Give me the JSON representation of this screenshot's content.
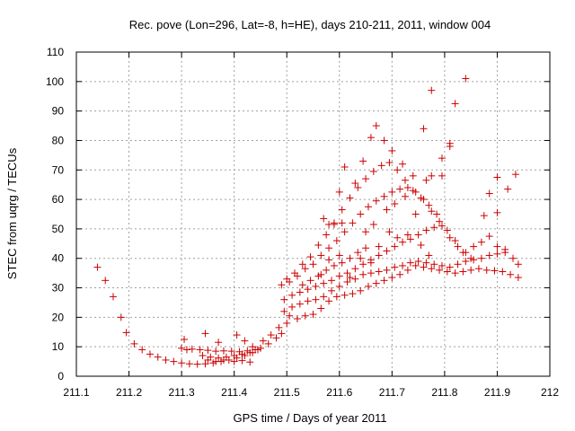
{
  "chart_data": {
    "type": "scatter",
    "title": "Rec. pove (Lon=296, Lat=-8, h=HE), days 210-211, 2011, window 004",
    "xlabel": "GPS time / Days of year 2011",
    "ylabel": "STEC from uqrg / TECUs",
    "xlim": [
      211.1,
      212
    ],
    "ylim": [
      0,
      110
    ],
    "xticks": [
      "211.1",
      "211.2",
      "211.3",
      "211.4",
      "211.5",
      "211.6",
      "211.7",
      "211.8",
      "211.9",
      "212"
    ],
    "yticks": [
      "0",
      "10",
      "20",
      "30",
      "40",
      "50",
      "60",
      "70",
      "80",
      "90",
      "100",
      "110"
    ],
    "grid": true,
    "marker": "plus",
    "color": "#cc0000",
    "points": [
      [
        211.14,
        37
      ],
      [
        211.155,
        32.5
      ],
      [
        211.17,
        27
      ],
      [
        211.185,
        20
      ],
      [
        211.195,
        14.8
      ],
      [
        211.21,
        11
      ],
      [
        211.225,
        9
      ],
      [
        211.24,
        7.5
      ],
      [
        211.255,
        6.5
      ],
      [
        211.27,
        5.5
      ],
      [
        211.285,
        5
      ],
      [
        211.3,
        4.5
      ],
      [
        211.315,
        4.2
      ],
      [
        211.33,
        4.1
      ],
      [
        211.345,
        4.2
      ],
      [
        211.36,
        4.5
      ],
      [
        211.375,
        5
      ],
      [
        211.39,
        5.5
      ],
      [
        211.405,
        6.2
      ],
      [
        211.42,
        7
      ],
      [
        211.435,
        8
      ],
      [
        211.45,
        9.5
      ],
      [
        211.465,
        11
      ],
      [
        211.48,
        13
      ],
      [
        211.49,
        14.5
      ],
      [
        211.3,
        9.5
      ],
      [
        211.31,
        9
      ],
      [
        211.32,
        9.2
      ],
      [
        211.335,
        9
      ],
      [
        211.35,
        8.8
      ],
      [
        211.365,
        8.5
      ],
      [
        211.38,
        8.6
      ],
      [
        211.395,
        8.5
      ],
      [
        211.41,
        8.3
      ],
      [
        211.425,
        8.6
      ],
      [
        211.44,
        9
      ],
      [
        211.305,
        12.5
      ],
      [
        211.345,
        14.5
      ],
      [
        211.37,
        11.5
      ],
      [
        211.405,
        14
      ],
      [
        211.42,
        12
      ],
      [
        211.435,
        10
      ],
      [
        211.34,
        7
      ],
      [
        211.355,
        6.5
      ],
      [
        211.37,
        6.2
      ],
      [
        211.385,
        6.5
      ],
      [
        211.4,
        7
      ],
      [
        211.415,
        7.5
      ],
      [
        211.43,
        8
      ],
      [
        211.445,
        9
      ],
      [
        211.35,
        5.5
      ],
      [
        211.365,
        5
      ],
      [
        211.38,
        5.5
      ],
      [
        211.4,
        5
      ],
      [
        211.415,
        5.3
      ],
      [
        211.43,
        4.8
      ],
      [
        211.455,
        12
      ],
      [
        211.47,
        14
      ],
      [
        211.485,
        16.5
      ],
      [
        211.5,
        18
      ],
      [
        211.505,
        20.5
      ],
      [
        211.52,
        19.5
      ],
      [
        211.535,
        20.5
      ],
      [
        211.55,
        21
      ],
      [
        211.565,
        23
      ],
      [
        211.58,
        25.5
      ],
      [
        211.595,
        27
      ],
      [
        211.61,
        27.5
      ],
      [
        211.625,
        28
      ],
      [
        211.64,
        29
      ],
      [
        211.655,
        30.5
      ],
      [
        211.67,
        31.5
      ],
      [
        211.685,
        32.5
      ],
      [
        211.7,
        33.5
      ],
      [
        211.715,
        34.5
      ],
      [
        211.73,
        36
      ],
      [
        211.745,
        37.5
      ],
      [
        211.76,
        37
      ],
      [
        211.775,
        36.5
      ],
      [
        211.79,
        36
      ],
      [
        211.805,
        35.5
      ],
      [
        211.82,
        35
      ],
      [
        211.835,
        35.5
      ],
      [
        211.85,
        36
      ],
      [
        211.865,
        36.5
      ],
      [
        211.88,
        36
      ],
      [
        211.895,
        35.8
      ],
      [
        211.91,
        35.5
      ],
      [
        211.925,
        34.5
      ],
      [
        211.94,
        33.5
      ],
      [
        211.495,
        22
      ],
      [
        211.51,
        23.5
      ],
      [
        211.525,
        24.5
      ],
      [
        211.54,
        25.5
      ],
      [
        211.555,
        26
      ],
      [
        211.57,
        27
      ],
      [
        211.585,
        29
      ],
      [
        211.6,
        30.5
      ],
      [
        211.615,
        32
      ],
      [
        211.63,
        33
      ],
      [
        211.645,
        34.5
      ],
      [
        211.66,
        35
      ],
      [
        211.675,
        35.5
      ],
      [
        211.69,
        36
      ],
      [
        211.705,
        37
      ],
      [
        211.72,
        37.5
      ],
      [
        211.735,
        38.5
      ],
      [
        211.75,
        39
      ],
      [
        211.765,
        38.5
      ],
      [
        211.78,
        38
      ],
      [
        211.795,
        37.5
      ],
      [
        211.81,
        37
      ],
      [
        211.825,
        38
      ],
      [
        211.84,
        39
      ],
      [
        211.855,
        39.5
      ],
      [
        211.87,
        40
      ],
      [
        211.885,
        41
      ],
      [
        211.9,
        41.5
      ],
      [
        211.915,
        42
      ],
      [
        211.93,
        40
      ],
      [
        211.94,
        38
      ],
      [
        211.495,
        26
      ],
      [
        211.51,
        27.5
      ],
      [
        211.525,
        28.5
      ],
      [
        211.54,
        29.5
      ],
      [
        211.555,
        30.5
      ],
      [
        211.57,
        31.5
      ],
      [
        211.585,
        32.5
      ],
      [
        211.6,
        34
      ],
      [
        211.615,
        35
      ],
      [
        211.63,
        36.5
      ],
      [
        211.645,
        38
      ],
      [
        211.66,
        39.5
      ],
      [
        211.675,
        41
      ],
      [
        211.69,
        42.5
      ],
      [
        211.705,
        44
      ],
      [
        211.72,
        45.5
      ],
      [
        211.735,
        46.5
      ],
      [
        211.75,
        48
      ],
      [
        211.765,
        49.5
      ],
      [
        211.78,
        50.5
      ],
      [
        211.795,
        51
      ],
      [
        211.81,
        47
      ],
      [
        211.825,
        44
      ],
      [
        211.84,
        42
      ],
      [
        211.855,
        44
      ],
      [
        211.87,
        45.5
      ],
      [
        211.885,
        47.5
      ],
      [
        211.9,
        44
      ],
      [
        211.915,
        43
      ],
      [
        211.49,
        31
      ],
      [
        211.505,
        32
      ],
      [
        211.52,
        34
      ],
      [
        211.535,
        36.5
      ],
      [
        211.55,
        38
      ],
      [
        211.565,
        41
      ],
      [
        211.58,
        43.5
      ],
      [
        211.595,
        46
      ],
      [
        211.61,
        49
      ],
      [
        211.625,
        52
      ],
      [
        211.64,
        55
      ],
      [
        211.655,
        57.5
      ],
      [
        211.67,
        59.5
      ],
      [
        211.685,
        61
      ],
      [
        211.7,
        62.5
      ],
      [
        211.715,
        63.5
      ],
      [
        211.73,
        64
      ],
      [
        211.745,
        62.5
      ],
      [
        211.76,
        60
      ],
      [
        211.775,
        56
      ],
      [
        211.79,
        52.5
      ],
      [
        211.805,
        49.5
      ],
      [
        211.82,
        46
      ],
      [
        211.835,
        42
      ],
      [
        211.85,
        40
      ],
      [
        211.5,
        33
      ],
      [
        211.515,
        35
      ],
      [
        211.53,
        38
      ],
      [
        211.545,
        40.5
      ],
      [
        211.56,
        44.5
      ],
      [
        211.575,
        48
      ],
      [
        211.59,
        52
      ],
      [
        211.605,
        56.5
      ],
      [
        211.62,
        60.5
      ],
      [
        211.635,
        64
      ],
      [
        211.65,
        67
      ],
      [
        211.665,
        69.5
      ],
      [
        211.68,
        71.5
      ],
      [
        211.695,
        72.5
      ],
      [
        211.71,
        70
      ],
      [
        211.725,
        66.5
      ],
      [
        211.74,
        63
      ],
      [
        211.755,
        60.5
      ],
      [
        211.77,
        58
      ],
      [
        211.785,
        55
      ],
      [
        211.57,
        53.5
      ],
      [
        211.59,
        51.5
      ],
      [
        211.6,
        62.5
      ],
      [
        211.61,
        71
      ],
      [
        211.63,
        65.5
      ],
      [
        211.645,
        73
      ],
      [
        211.66,
        81
      ],
      [
        211.67,
        85
      ],
      [
        211.685,
        80
      ],
      [
        211.7,
        76.5
      ],
      [
        211.72,
        72
      ],
      [
        211.74,
        68
      ],
      [
        211.76,
        84
      ],
      [
        211.775,
        97
      ],
      [
        211.795,
        74
      ],
      [
        211.81,
        78
      ],
      [
        211.82,
        92.5
      ],
      [
        211.84,
        101
      ],
      [
        211.58,
        51.5
      ],
      [
        211.605,
        52
      ],
      [
        211.65,
        49
      ],
      [
        211.665,
        51.5
      ],
      [
        211.69,
        56.5
      ],
      [
        211.705,
        58.5
      ],
      [
        211.725,
        61
      ],
      [
        211.745,
        55
      ],
      [
        211.765,
        66.5
      ],
      [
        211.775,
        68
      ],
      [
        211.795,
        68
      ],
      [
        211.81,
        79
      ],
      [
        211.565,
        34.5
      ],
      [
        211.58,
        39.5
      ],
      [
        211.6,
        41
      ],
      [
        211.62,
        33.5
      ],
      [
        211.64,
        40
      ],
      [
        211.66,
        38.5
      ],
      [
        211.675,
        44
      ],
      [
        211.695,
        49
      ],
      [
        211.71,
        47
      ],
      [
        211.73,
        48
      ],
      [
        211.755,
        44.5
      ],
      [
        211.77,
        41
      ],
      [
        211.875,
        54.5
      ],
      [
        211.885,
        62
      ],
      [
        211.9,
        67.5
      ],
      [
        211.9,
        55.5
      ],
      [
        211.92,
        63.5
      ],
      [
        211.935,
        68.5
      ],
      [
        211.53,
        31
      ],
      [
        211.545,
        32.5
      ],
      [
        211.56,
        34
      ],
      [
        211.575,
        36
      ],
      [
        211.59,
        37.5
      ],
      [
        211.605,
        38.5
      ],
      [
        211.62,
        40
      ],
      [
        211.635,
        42
      ],
      [
        211.65,
        43.5
      ]
    ]
  }
}
